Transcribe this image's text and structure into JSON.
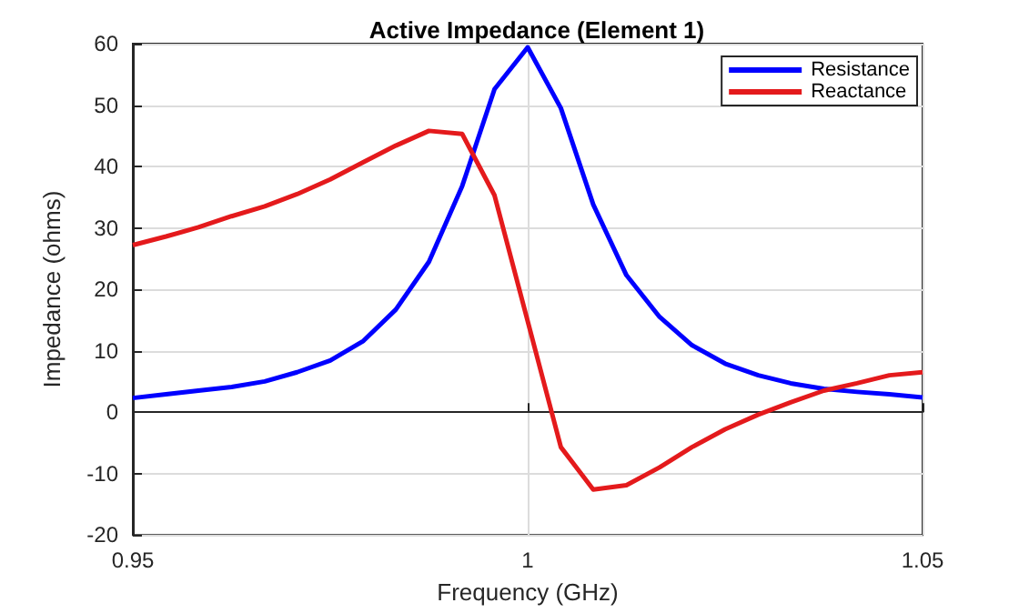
{
  "chart_data": {
    "type": "line",
    "title": "Active Impedance (Element 1)",
    "xlabel": "Frequency (GHz)",
    "ylabel": "Impedance (ohms)",
    "x": [
      0.95,
      0.9542,
      0.9583,
      0.9625,
      0.9667,
      0.9708,
      0.975,
      0.9792,
      0.9833,
      0.9875,
      0.9917,
      0.9958,
      1,
      1.0042,
      1.0083,
      1.0125,
      1.0167,
      1.0208,
      1.025,
      1.0292,
      1.0333,
      1.0375,
      1.0417,
      1.0458,
      1.05
    ],
    "series": [
      {
        "name": "Resistance",
        "color": "#0000ff",
        "values": [
          2.3,
          2.9,
          3.5,
          4.1,
          5.0,
          6.5,
          8.4,
          11.6,
          16.7,
          24.5,
          36.8,
          52.6,
          59.4,
          49.5,
          33.8,
          22.3,
          15.5,
          10.9,
          7.9,
          6.0,
          4.7,
          3.8,
          3.3,
          2.9,
          2.4
        ]
      },
      {
        "name": "Reactance",
        "color": "#e41a1c",
        "values": [
          27.2,
          28.6,
          30.1,
          31.9,
          33.5,
          35.5,
          37.9,
          40.7,
          43.4,
          45.8,
          45.3,
          35.3,
          14.8,
          -5.7,
          -12.6,
          -11.9,
          -9.0,
          -5.7,
          -2.8,
          -0.4,
          1.6,
          3.5,
          4.7,
          6.0,
          6.5
        ]
      }
    ],
    "xlim": [
      0.95,
      1.05
    ],
    "xticks": [
      0.95,
      1,
      1.05
    ],
    "ylim": [
      -20,
      60
    ],
    "yticks": [
      -20,
      -10,
      0,
      10,
      20,
      30,
      40,
      50,
      60
    ],
    "grid": true,
    "legend": "top right",
    "marker": "none",
    "line_style": "solid"
  }
}
